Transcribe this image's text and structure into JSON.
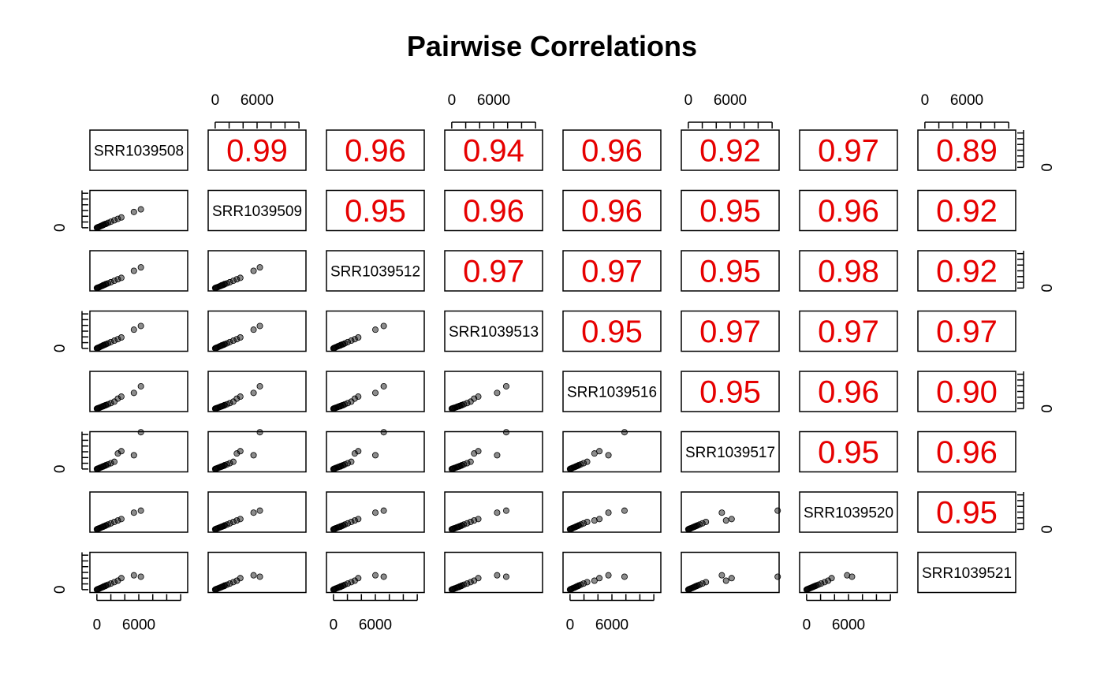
{
  "chart_data": {
    "type": "scatter",
    "title": "Pairwise Correlations",
    "variables": [
      "SRR1039508",
      "SRR1039509",
      "SRR1039512",
      "SRR1039513",
      "SRR1039516",
      "SRR1039517",
      "SRR1039520",
      "SRR1039521"
    ],
    "tick_labels": [
      "0",
      "6000"
    ],
    "axis_ticks": [
      0,
      2000,
      4000,
      6000,
      8000,
      10000,
      12000
    ],
    "axis_range": [
      -1000,
      13000
    ],
    "correlations": [
      [
        null,
        0.99,
        0.96,
        0.94,
        0.96,
        0.92,
        0.97,
        0.89
      ],
      [
        null,
        null,
        0.95,
        0.96,
        0.96,
        0.95,
        0.96,
        0.92
      ],
      [
        null,
        null,
        null,
        0.97,
        0.97,
        0.95,
        0.98,
        0.92
      ],
      [
        null,
        null,
        null,
        null,
        0.95,
        0.97,
        0.97,
        0.97
      ],
      [
        null,
        null,
        null,
        null,
        null,
        0.95,
        0.96,
        0.9
      ],
      [
        null,
        null,
        null,
        null,
        null,
        null,
        0.95,
        0.96
      ],
      [
        null,
        null,
        null,
        null,
        null,
        null,
        null,
        0.95
      ],
      [
        null,
        null,
        null,
        null,
        null,
        null,
        null,
        null
      ]
    ],
    "correlation_labels": [
      [
        null,
        "0.99",
        "0.96",
        "0.94",
        "0.96",
        "0.92",
        "0.97",
        "0.89"
      ],
      [
        null,
        null,
        "0.95",
        "0.96",
        "0.96",
        "0.95",
        "0.96",
        "0.92"
      ],
      [
        null,
        null,
        null,
        "0.97",
        "0.97",
        "0.95",
        "0.98",
        "0.92"
      ],
      [
        null,
        null,
        null,
        null,
        "0.95",
        "0.97",
        "0.97",
        "0.97"
      ],
      [
        null,
        null,
        null,
        null,
        null,
        "0.95",
        "0.96",
        "0.90"
      ],
      [
        null,
        null,
        null,
        null,
        null,
        null,
        "0.95",
        "0.96"
      ],
      [
        null,
        null,
        null,
        null,
        null,
        null,
        null,
        "0.95"
      ],
      [
        null,
        null,
        null,
        null,
        null,
        null,
        null,
        null
      ]
    ],
    "samples": {
      "SRR1039508": [
        0,
        80,
        150,
        250,
        400,
        600,
        800,
        1000,
        1300,
        1600,
        2000,
        2500,
        3000,
        3500,
        5300,
        6300,
        900,
        1200
      ],
      "SRR1039509": [
        0,
        90,
        160,
        260,
        420,
        650,
        850,
        1100,
        1350,
        1700,
        2100,
        2600,
        3100,
        3600,
        5500,
        6400,
        950,
        1300
      ],
      "SRR1039512": [
        0,
        70,
        140,
        240,
        380,
        620,
        820,
        1050,
        1400,
        1650,
        2050,
        2550,
        3050,
        3550,
        6000,
        7200,
        1000,
        1250
      ],
      "SRR1039513": [
        0,
        100,
        170,
        270,
        450,
        700,
        900,
        1150,
        1450,
        1750,
        2200,
        2700,
        3200,
        3800,
        6500,
        7800,
        1050,
        1350
      ],
      "SRR1039516": [
        0,
        60,
        130,
        230,
        360,
        580,
        780,
        980,
        1250,
        1550,
        1950,
        2450,
        3500,
        4200,
        5500,
        7800,
        850,
        1150
      ],
      "SRR1039517": [
        0,
        75,
        145,
        245,
        390,
        610,
        810,
        1020,
        1320,
        1620,
        2020,
        2520,
        5400,
        6200,
        4800,
        12800,
        880,
        1180
      ],
      "SRR1039520": [
        0,
        85,
        155,
        255,
        410,
        630,
        830,
        1070,
        1380,
        1680,
        2080,
        2580,
        3080,
        3580,
        5800,
        6500,
        920,
        1220
      ],
      "SRR1039521": [
        0,
        95,
        165,
        265,
        430,
        640,
        870,
        1120,
        1420,
        1720,
        2120,
        2620,
        3120,
        4000,
        5000,
        4500,
        930,
        1250
      ]
    }
  }
}
